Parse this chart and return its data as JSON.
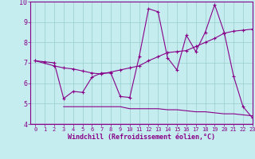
{
  "xlabel": "Windchill (Refroidissement éolien,°C)",
  "xlim": [
    -0.5,
    23
  ],
  "ylim": [
    4,
    10
  ],
  "xticks": [
    0,
    1,
    2,
    3,
    4,
    5,
    6,
    7,
    8,
    9,
    10,
    11,
    12,
    13,
    14,
    15,
    16,
    17,
    18,
    19,
    20,
    21,
    22,
    23
  ],
  "yticks": [
    4,
    5,
    6,
    7,
    8,
    9,
    10
  ],
  "bg_color": "#c5edf0",
  "line_color": "#880088",
  "grid_color": "#99cccc",
  "series": [
    {
      "x": [
        0,
        1,
        2,
        3,
        4,
        5,
        6,
        7,
        8,
        9,
        10,
        11,
        12,
        13,
        14,
        15,
        16,
        17,
        18,
        19,
        20,
        21,
        22,
        23
      ],
      "y": [
        7.1,
        7.05,
        7.0,
        5.25,
        5.6,
        5.55,
        6.3,
        6.5,
        6.5,
        5.35,
        5.3,
        7.3,
        9.65,
        9.5,
        7.25,
        6.65,
        8.35,
        7.55,
        8.5,
        9.85,
        8.5,
        6.35,
        4.85,
        4.3
      ],
      "marker": true
    },
    {
      "x": [
        0,
        2,
        3,
        4,
        5,
        6,
        7,
        8,
        9,
        10,
        11,
        12,
        13,
        14,
        15,
        16,
        17,
        18,
        19,
        20,
        21,
        22,
        23
      ],
      "y": [
        7.1,
        6.85,
        6.75,
        6.7,
        6.6,
        6.5,
        6.45,
        6.55,
        6.65,
        6.75,
        6.85,
        7.1,
        7.3,
        7.5,
        7.55,
        7.6,
        7.8,
        8.0,
        8.2,
        8.45,
        8.55,
        8.6,
        8.65
      ],
      "marker": true
    },
    {
      "x": [
        3,
        4,
        5,
        6,
        7,
        8,
        9,
        10,
        11,
        12,
        13,
        14,
        15,
        16,
        17,
        18,
        19,
        20,
        21,
        22,
        23
      ],
      "y": [
        4.85,
        4.85,
        4.85,
        4.85,
        4.85,
        4.85,
        4.85,
        4.75,
        4.75,
        4.75,
        4.75,
        4.7,
        4.7,
        4.65,
        4.6,
        4.6,
        4.55,
        4.5,
        4.5,
        4.45,
        4.4
      ],
      "marker": false
    }
  ]
}
